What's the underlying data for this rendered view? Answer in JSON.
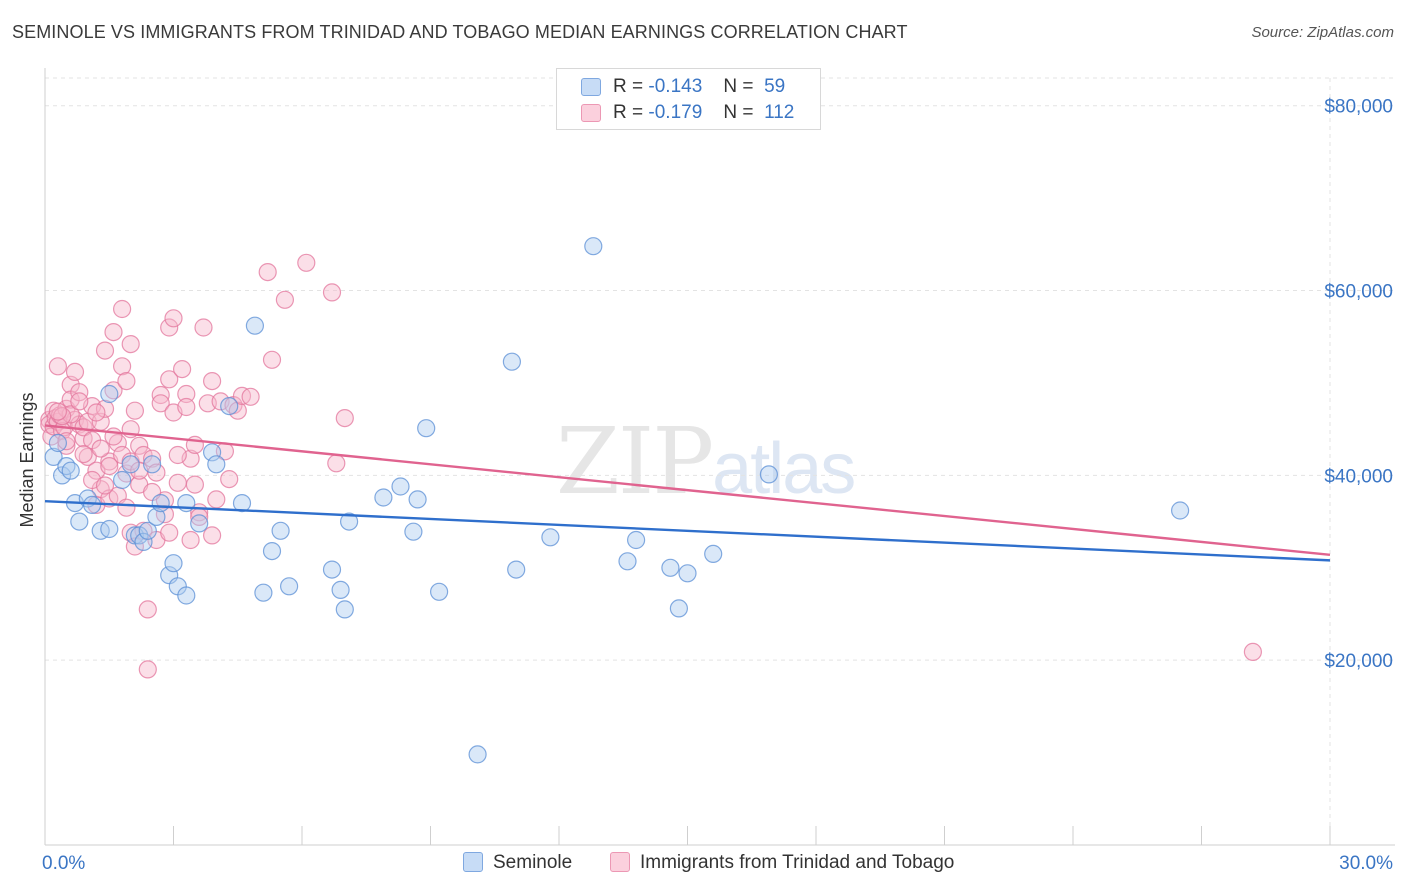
{
  "title": "SEMINOLE VS IMMIGRANTS FROM TRINIDAD AND TOBAGO MEDIAN EARNINGS CORRELATION CHART",
  "source": "Source: ZipAtlas.com",
  "watermark": {
    "zip": "ZIP",
    "atlas": "atlas"
  },
  "legend": [
    {
      "r_label": "R =",
      "r_value": "-0.143",
      "n_label": "N =",
      "n_value": "59",
      "color": "#aecbf0"
    },
    {
      "r_label": "R =",
      "r_value": "-0.179",
      "n_label": "N =",
      "n_value": "112",
      "color": "#f6b9cc"
    }
  ],
  "chart_data": {
    "type": "scatter",
    "title": "SEMINOLE VS IMMIGRANTS FROM TRINIDAD AND TOBAGO MEDIAN EARNINGS CORRELATION CHART",
    "xlabel": "",
    "ylabel": "Median Earnings",
    "xlim": [
      0,
      30
    ],
    "ylim": [
      0,
      83000
    ],
    "x_tick_labels": [
      "0.0%",
      "30.0%"
    ],
    "y_ticks": [
      20000,
      40000,
      60000,
      80000
    ],
    "y_tick_labels": [
      "$20,000",
      "$40,000",
      "$60,000",
      "$80,000"
    ],
    "grid": true,
    "legend_position": "top-center",
    "series": [
      {
        "name": "Seminole",
        "color": "#5b8fd6",
        "fill": "#aecbf0",
        "trend": {
          "x": [
            0,
            30
          ],
          "y": [
            37200,
            30800
          ]
        },
        "points": [
          [
            0.2,
            42000
          ],
          [
            0.3,
            43500
          ],
          [
            0.4,
            40000
          ],
          [
            0.5,
            41000
          ],
          [
            0.6,
            40500
          ],
          [
            0.7,
            37000
          ],
          [
            0.8,
            35000
          ],
          [
            1.0,
            37500
          ],
          [
            1.1,
            36800
          ],
          [
            1.3,
            34000
          ],
          [
            1.5,
            34200
          ],
          [
            1.5,
            48800
          ],
          [
            1.8,
            39500
          ],
          [
            2.0,
            41200
          ],
          [
            2.1,
            33500
          ],
          [
            2.2,
            33500
          ],
          [
            2.3,
            32800
          ],
          [
            2.4,
            34000
          ],
          [
            2.5,
            41200
          ],
          [
            2.6,
            35500
          ],
          [
            2.7,
            37000
          ],
          [
            2.9,
            29200
          ],
          [
            3.0,
            30500
          ],
          [
            3.1,
            28000
          ],
          [
            3.3,
            27000
          ],
          [
            3.3,
            37000
          ],
          [
            3.6,
            34800
          ],
          [
            3.9,
            42500
          ],
          [
            4.0,
            41200
          ],
          [
            4.3,
            47500
          ],
          [
            4.6,
            37000
          ],
          [
            4.9,
            56200
          ],
          [
            5.1,
            27300
          ],
          [
            5.3,
            31800
          ],
          [
            5.5,
            34000
          ],
          [
            5.7,
            28000
          ],
          [
            6.7,
            29800
          ],
          [
            6.9,
            27600
          ],
          [
            7.0,
            25500
          ],
          [
            7.1,
            35000
          ],
          [
            7.9,
            37600
          ],
          [
            8.3,
            38800
          ],
          [
            8.6,
            33900
          ],
          [
            8.7,
            37400
          ],
          [
            8.9,
            45100
          ],
          [
            9.2,
            27400
          ],
          [
            10.1,
            9800
          ],
          [
            10.9,
            52300
          ],
          [
            11.0,
            29800
          ],
          [
            11.8,
            33300
          ],
          [
            12.8,
            64800
          ],
          [
            13.6,
            30700
          ],
          [
            13.8,
            33000
          ],
          [
            14.6,
            30000
          ],
          [
            14.8,
            25600
          ],
          [
            15.0,
            29400
          ],
          [
            15.6,
            31500
          ],
          [
            16.9,
            40100
          ],
          [
            26.5,
            36200
          ]
        ]
      },
      {
        "name": "Immigrants from Trinidad and Tobago",
        "color": "#e3769c",
        "fill": "#f6b9cc",
        "trend": {
          "x": [
            0,
            30
          ],
          "y": [
            45400,
            31400
          ]
        },
        "points": [
          [
            0.1,
            46000
          ],
          [
            0.1,
            45500
          ],
          [
            0.15,
            44200
          ],
          [
            0.2,
            47000
          ],
          [
            0.2,
            45300
          ],
          [
            0.25,
            46200
          ],
          [
            0.3,
            51800
          ],
          [
            0.3,
            45800
          ],
          [
            0.35,
            46500
          ],
          [
            0.4,
            44800
          ],
          [
            0.45,
            45200
          ],
          [
            0.5,
            47200
          ],
          [
            0.5,
            43200
          ],
          [
            0.6,
            49800
          ],
          [
            0.6,
            48200
          ],
          [
            0.7,
            51200
          ],
          [
            0.7,
            46000
          ],
          [
            0.8,
            49000
          ],
          [
            0.8,
            45500
          ],
          [
            0.9,
            44000
          ],
          [
            0.9,
            45200
          ],
          [
            1.0,
            42000
          ],
          [
            1.0,
            45800
          ],
          [
            1.1,
            47500
          ],
          [
            1.1,
            43800
          ],
          [
            1.2,
            40500
          ],
          [
            1.2,
            36800
          ],
          [
            1.3,
            45800
          ],
          [
            1.3,
            38500
          ],
          [
            1.4,
            53500
          ],
          [
            1.4,
            47200
          ],
          [
            1.5,
            41500
          ],
          [
            1.5,
            37500
          ],
          [
            1.6,
            55500
          ],
          [
            1.6,
            49200
          ],
          [
            1.7,
            43500
          ],
          [
            1.7,
            37800
          ],
          [
            1.8,
            58000
          ],
          [
            1.8,
            51800
          ],
          [
            1.8,
            42200
          ],
          [
            1.9,
            50200
          ],
          [
            1.9,
            40200
          ],
          [
            2.0,
            54200
          ],
          [
            2.0,
            41500
          ],
          [
            2.0,
            33800
          ],
          [
            2.1,
            47000
          ],
          [
            2.1,
            32300
          ],
          [
            2.2,
            43200
          ],
          [
            2.2,
            39000
          ],
          [
            2.3,
            42200
          ],
          [
            2.3,
            34000
          ],
          [
            2.4,
            25500
          ],
          [
            2.4,
            19000
          ],
          [
            2.5,
            41800
          ],
          [
            2.6,
            40300
          ],
          [
            2.6,
            33000
          ],
          [
            2.7,
            48700
          ],
          [
            2.7,
            47800
          ],
          [
            2.8,
            37300
          ],
          [
            2.8,
            35800
          ],
          [
            2.9,
            56000
          ],
          [
            2.9,
            50400
          ],
          [
            3.0,
            57000
          ],
          [
            3.0,
            46800
          ],
          [
            3.1,
            39200
          ],
          [
            3.2,
            51500
          ],
          [
            3.3,
            48800
          ],
          [
            3.3,
            47400
          ],
          [
            3.4,
            41800
          ],
          [
            3.4,
            33000
          ],
          [
            3.5,
            39000
          ],
          [
            3.6,
            36000
          ],
          [
            3.7,
            56000
          ],
          [
            3.8,
            47800
          ],
          [
            3.9,
            50200
          ],
          [
            3.9,
            33500
          ],
          [
            4.0,
            37400
          ],
          [
            4.1,
            48000
          ],
          [
            4.2,
            42600
          ],
          [
            4.3,
            39600
          ],
          [
            4.4,
            47600
          ],
          [
            4.5,
            47000
          ],
          [
            4.6,
            48600
          ],
          [
            4.8,
            48500
          ],
          [
            5.2,
            62000
          ],
          [
            5.3,
            52500
          ],
          [
            5.6,
            59000
          ],
          [
            6.1,
            63000
          ],
          [
            6.7,
            59800
          ],
          [
            6.8,
            41300
          ],
          [
            7.0,
            46200
          ],
          [
            1.1,
            39500
          ],
          [
            1.5,
            41000
          ],
          [
            2.0,
            45000
          ],
          [
            0.9,
            42300
          ],
          [
            0.6,
            46600
          ],
          [
            2.5,
            38200
          ],
          [
            3.1,
            42200
          ],
          [
            3.5,
            43300
          ],
          [
            1.2,
            46800
          ],
          [
            1.3,
            42900
          ],
          [
            0.4,
            46400
          ],
          [
            0.8,
            48000
          ],
          [
            1.6,
            44200
          ],
          [
            2.2,
            40500
          ],
          [
            2.9,
            33800
          ],
          [
            3.6,
            35500
          ],
          [
            1.9,
            36500
          ],
          [
            0.3,
            46900
          ],
          [
            1.4,
            38900
          ],
          [
            0.5,
            43700
          ],
          [
            28.2,
            20900
          ]
        ]
      }
    ]
  }
}
